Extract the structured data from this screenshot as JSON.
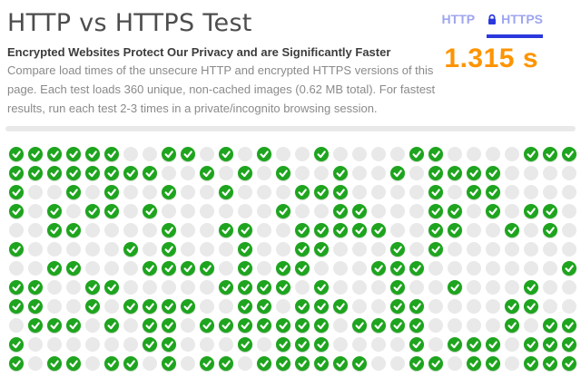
{
  "page": {
    "title": "HTTP vs HTTPS Test"
  },
  "tabs": {
    "http": {
      "label": "HTTP",
      "active": false
    },
    "https": {
      "label": "HTTPS",
      "active": true,
      "icon": "lock-icon"
    }
  },
  "timer": {
    "value": "1.315 s"
  },
  "description": {
    "heading": "Encrypted Websites Protect Our Privacy and are Significantly Faster",
    "body": "Compare load times of the unsecure HTTP and encrypted HTTPS versions of this page. Each test loads 360 unique, non-cached images (0.62 MB total). For fastest results, run each test 2-3 times in a private/incognito browsing session."
  },
  "colors": {
    "accent_blue": "#2b38dd",
    "tab_inactive": "#9ea5ef",
    "timer_orange": "#fe9400",
    "loaded_green": "#1ea41e",
    "empty_gray": "#e9e9e9"
  },
  "grid": {
    "rows": 12,
    "cols": 30,
    "total_images": 360,
    "loaded_icon": "check-icon",
    "cells": [
      "111111001101010010000110000111",
      "111111110010101001001011110000",
      "100101001001000111000010110000",
      "101011010000001001100011010110",
      "001100001001100111110011001010",
      "100000101000100110001010000000",
      "001100011110101100011100000001",
      "110011000001111010001001000100",
      "110010111100110111001100001100",
      "011101011011111110111100001011",
      "100000011000101110000101110111",
      "101101101011011111100110110111"
    ]
  }
}
